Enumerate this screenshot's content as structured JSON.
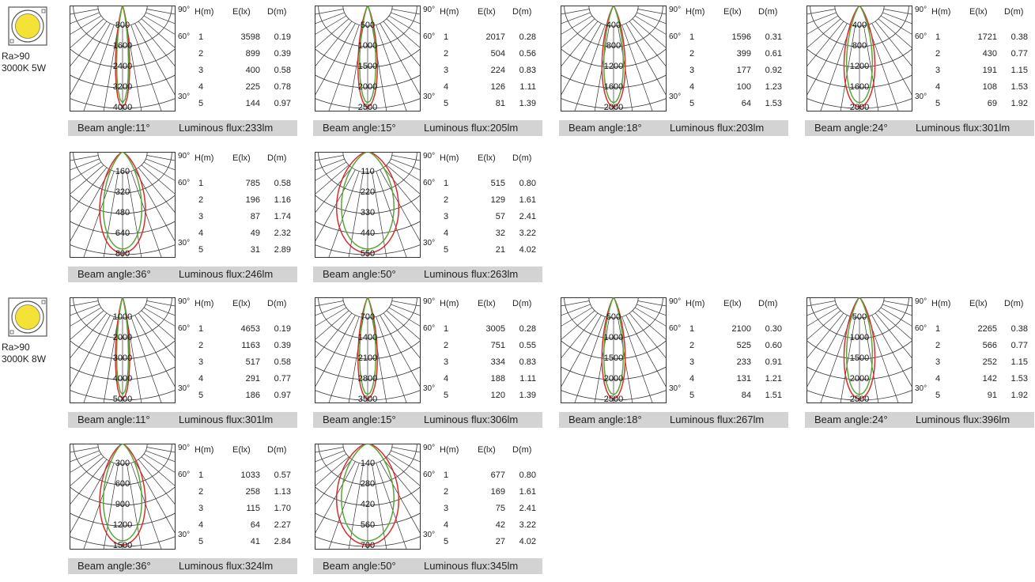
{
  "products": [
    {
      "ra": "Ra>90",
      "spec": "3000K 5W"
    },
    {
      "ra": "Ra>90",
      "spec": "3000K 8W"
    }
  ],
  "colors": {
    "red_curve": "#d62d2d",
    "green_curve": "#5aa53a",
    "footer_bg": "#d3d3d3",
    "chip_yellow": "#f4e236"
  },
  "table_headers": [
    "H(m)",
    "E(lx)",
    "D(m)"
  ],
  "angle_labels": [
    "90°",
    "60°",
    "30°"
  ],
  "chart_data": [
    {
      "type": "polar",
      "beam_angle": "Beam angle:11°",
      "flux": "Luminous flux:233lm",
      "rings": [
        "800",
        "1600",
        "2400",
        "3200",
        "4000"
      ],
      "table": {
        "h": [
          "1",
          "2",
          "3",
          "4",
          "5"
        ],
        "e": [
          "3598",
          "899",
          "400",
          "225",
          "144"
        ],
        "d": [
          "0.19",
          "0.39",
          "0.58",
          "0.78",
          "0.97"
        ]
      }
    },
    {
      "type": "polar",
      "beam_angle": "Beam angle:15°",
      "flux": "Luminous flux:205lm",
      "rings": [
        "500",
        "1000",
        "1500",
        "2000",
        "2500"
      ],
      "table": {
        "h": [
          "1",
          "2",
          "3",
          "4",
          "5"
        ],
        "e": [
          "2017",
          "504",
          "224",
          "126",
          "81"
        ],
        "d": [
          "0.28",
          "0.56",
          "0.83",
          "1.11",
          "1.39"
        ]
      }
    },
    {
      "type": "polar",
      "beam_angle": "Beam angle:18°",
      "flux": "Luminous flux:203lm",
      "rings": [
        "400",
        "800",
        "1200",
        "1600",
        "2000"
      ],
      "table": {
        "h": [
          "1",
          "2",
          "3",
          "4",
          "5"
        ],
        "e": [
          "1596",
          "399",
          "177",
          "100",
          "64"
        ],
        "d": [
          "0.31",
          "0.61",
          "0.92",
          "1.23",
          "1.53"
        ]
      }
    },
    {
      "type": "polar",
      "beam_angle": "Beam angle:24°",
      "flux": "Luminous flux:301lm",
      "rings": [
        "400",
        "800",
        "1200",
        "1600",
        "2000"
      ],
      "table": {
        "h": [
          "1",
          "2",
          "3",
          "4",
          "5"
        ],
        "e": [
          "1721",
          "430",
          "191",
          "108",
          "69"
        ],
        "d": [
          "0.38",
          "0.77",
          "1.15",
          "1.53",
          "1.92"
        ]
      }
    },
    {
      "type": "polar",
      "beam_angle": "Beam angle:36°",
      "flux": "Luminous flux:246lm",
      "rings": [
        "160",
        "320",
        "480",
        "640",
        "800"
      ],
      "table": {
        "h": [
          "1",
          "2",
          "3",
          "4",
          "5"
        ],
        "e": [
          "785",
          "196",
          "87",
          "49",
          "31"
        ],
        "d": [
          "0.58",
          "1.16",
          "1.74",
          "2.32",
          "2.89"
        ]
      }
    },
    {
      "type": "polar",
      "beam_angle": "Beam angle:50°",
      "flux": "Luminous flux:263lm",
      "rings": [
        "110",
        "220",
        "330",
        "440",
        "550"
      ],
      "table": {
        "h": [
          "1",
          "2",
          "3",
          "4",
          "5"
        ],
        "e": [
          "515",
          "129",
          "57",
          "32",
          "21"
        ],
        "d": [
          "0.80",
          "1.61",
          "2.41",
          "3.22",
          "4.02"
        ]
      }
    },
    {
      "type": "polar",
      "beam_angle": "Beam angle:11°",
      "flux": "Luminous flux:301lm",
      "rings": [
        "1000",
        "2000",
        "3000",
        "4000",
        "5000"
      ],
      "table": {
        "h": [
          "1",
          "2",
          "3",
          "4",
          "5"
        ],
        "e": [
          "4653",
          "1163",
          "517",
          "291",
          "186"
        ],
        "d": [
          "0.19",
          "0.39",
          "0.58",
          "0.77",
          "0.97"
        ]
      }
    },
    {
      "type": "polar",
      "beam_angle": "Beam angle:15°",
      "flux": "Luminous flux:306lm",
      "rings": [
        "700",
        "1400",
        "2100",
        "2800",
        "3500"
      ],
      "table": {
        "h": [
          "1",
          "2",
          "3",
          "4",
          "5"
        ],
        "e": [
          "3005",
          "751",
          "334",
          "188",
          "120"
        ],
        "d": [
          "0.28",
          "0.55",
          "0.83",
          "1.11",
          "1.39"
        ]
      }
    },
    {
      "type": "polar",
      "beam_angle": "Beam angle:18°",
      "flux": "Luminous flux:267lm",
      "rings": [
        "500",
        "1000",
        "1500",
        "2000",
        "2500"
      ],
      "table": {
        "h": [
          "1",
          "2",
          "3",
          "4",
          "5"
        ],
        "e": [
          "2100",
          "525",
          "233",
          "131",
          "84"
        ],
        "d": [
          "0.30",
          "0.60",
          "0.91",
          "1.21",
          "1.51"
        ]
      }
    },
    {
      "type": "polar",
      "beam_angle": "Beam angle:24°",
      "flux": "Luminous flux:396lm",
      "rings": [
        "500",
        "1000",
        "1500",
        "2000",
        "2500"
      ],
      "table": {
        "h": [
          "1",
          "2",
          "3",
          "4",
          "5"
        ],
        "e": [
          "2265",
          "566",
          "252",
          "142",
          "91"
        ],
        "d": [
          "0.38",
          "0.77",
          "1.15",
          "1.53",
          "1.92"
        ]
      }
    },
    {
      "type": "polar",
      "beam_angle": "Beam angle:36°",
      "flux": "Luminous flux:324lm",
      "rings": [
        "300",
        "600",
        "900",
        "1200",
        "1500"
      ],
      "table": {
        "h": [
          "1",
          "2",
          "3",
          "4",
          "5"
        ],
        "e": [
          "1033",
          "258",
          "115",
          "64",
          "41"
        ],
        "d": [
          "0.57",
          "1.13",
          "1.70",
          "2.27",
          "2.84"
        ]
      }
    },
    {
      "type": "polar",
      "beam_angle": "Beam angle:50°",
      "flux": "Luminous flux:345lm",
      "rings": [
        "140",
        "280",
        "420",
        "560",
        "700"
      ],
      "table": {
        "h": [
          "1",
          "2",
          "3",
          "4",
          "5"
        ],
        "e": [
          "677",
          "169",
          "75",
          "42",
          "27"
        ],
        "d": [
          "0.80",
          "1.61",
          "2.41",
          "3.22",
          "4.02"
        ]
      }
    }
  ]
}
